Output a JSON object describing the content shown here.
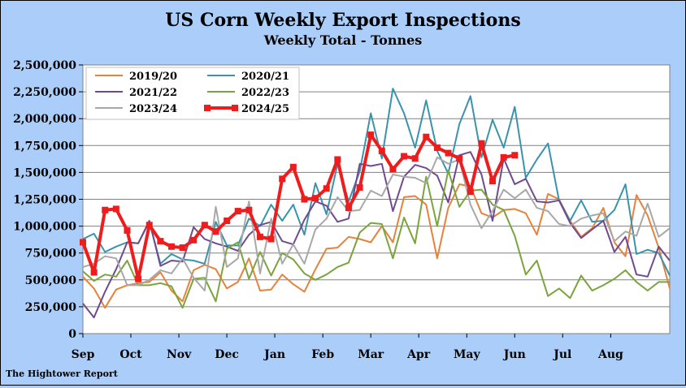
{
  "chart_data": {
    "type": "line",
    "title": "US Corn Weekly Export Inspections",
    "subtitle": "Weekly Total - Tonnes",
    "source": "The Hightower Report",
    "ylim": [
      0,
      2500000
    ],
    "xlim": [
      0,
      53
    ],
    "y_ticks": [
      0,
      250000,
      500000,
      750000,
      1000000,
      1250000,
      1500000,
      1750000,
      2000000,
      2250000,
      2500000
    ],
    "y_tick_labels": [
      "0",
      "250,000",
      "500,000",
      "750,000",
      "1,000,000",
      "1,250,000",
      "1,500,000",
      "1,750,000",
      "2,000,000",
      "2,250,000",
      "2,500,000"
    ],
    "x_tick_positions": [
      0,
      4.33,
      8.67,
      13,
      17.33,
      21.67,
      26,
      30.33,
      34.67,
      39,
      43.33,
      47.67
    ],
    "x_tick_labels": [
      "Sep",
      "Oct",
      "Nov",
      "Dec",
      "Jan",
      "Feb",
      "Mar",
      "Apr",
      "May",
      "Jun",
      "Jul",
      "Aug"
    ],
    "grid": true,
    "legend_position": "top-left",
    "series": [
      {
        "name": "2019/20",
        "color": "#e8823a",
        "width": 2,
        "values": [
          530000,
          420000,
          240000,
          410000,
          450000,
          470000,
          480000,
          570000,
          400000,
          300000,
          590000,
          640000,
          600000,
          420000,
          480000,
          700000,
          400000,
          410000,
          550000,
          460000,
          390000,
          600000,
          790000,
          800000,
          900000,
          880000,
          850000,
          1000000,
          850000,
          1270000,
          1280000,
          1200000,
          700000,
          1170000,
          1390000,
          1370000,
          1120000,
          1080000,
          1150000,
          1160000,
          1120000,
          920000,
          1300000,
          1250000,
          1050000,
          900000,
          980000,
          1170000,
          850000,
          720000,
          1290000,
          1100000,
          800000,
          420000
        ]
      },
      {
        "name": "2020/21",
        "color": "#3a93ad",
        "width": 2,
        "values": [
          880000,
          930000,
          760000,
          810000,
          850000,
          840000,
          1040000,
          650000,
          740000,
          690000,
          680000,
          650000,
          1040000,
          820000,
          820000,
          1070000,
          1000000,
          1200000,
          1050000,
          1200000,
          920000,
          1400000,
          1110000,
          1580000,
          1230000,
          1510000,
          2050000,
          1630000,
          2280000,
          2050000,
          1730000,
          2170000,
          1700000,
          1490000,
          1950000,
          2210000,
          1640000,
          1990000,
          1730000,
          2110000,
          1450000,
          1620000,
          1770000,
          1240000,
          1050000,
          1240000,
          1040000,
          1050000,
          1150000,
          1390000,
          740000,
          780000,
          750000,
          540000
        ]
      },
      {
        "name": "2021/22",
        "color": "#6f4a8f",
        "width": 2,
        "values": [
          280000,
          150000,
          390000,
          600000,
          850000,
          840000,
          1050000,
          630000,
          680000,
          670000,
          990000,
          880000,
          840000,
          810000,
          770000,
          920000,
          1010000,
          1040000,
          860000,
          830000,
          1060000,
          1230000,
          1190000,
          1040000,
          1070000,
          1580000,
          1560000,
          1580000,
          1140000,
          1460000,
          1570000,
          1540000,
          1470000,
          1220000,
          1660000,
          1690000,
          1480000,
          1050000,
          1630000,
          1390000,
          1440000,
          1230000,
          1220000,
          1240000,
          1030000,
          890000,
          970000,
          1050000,
          760000,
          900000,
          550000,
          530000,
          810000,
          680000
        ]
      },
      {
        "name": "2022/23",
        "color": "#7aa43c",
        "width": 2,
        "values": [
          580000,
          490000,
          550000,
          530000,
          680000,
          450000,
          450000,
          470000,
          440000,
          240000,
          510000,
          520000,
          300000,
          790000,
          850000,
          510000,
          760000,
          540000,
          750000,
          690000,
          560000,
          500000,
          550000,
          620000,
          660000,
          940000,
          1030000,
          1020000,
          700000,
          1080000,
          840000,
          1460000,
          1000000,
          1520000,
          1180000,
          1330000,
          1340000,
          1200000,
          1150000,
          910000,
          550000,
          680000,
          350000,
          420000,
          330000,
          540000,
          400000,
          450000,
          510000,
          590000,
          480000,
          400000,
          480000,
          480000
        ]
      },
      {
        "name": "2023/24",
        "color": "#a8a8a8",
        "width": 2,
        "values": [
          620000,
          650000,
          720000,
          700000,
          450000,
          450000,
          500000,
          590000,
          560000,
          700000,
          520000,
          400000,
          1180000,
          620000,
          700000,
          1230000,
          560000,
          1070000,
          650000,
          830000,
          650000,
          970000,
          1070000,
          1270000,
          1140000,
          1150000,
          1330000,
          1280000,
          1480000,
          1460000,
          1450000,
          1400000,
          1640000,
          1580000,
          1620000,
          1200000,
          980000,
          1140000,
          1340000,
          1260000,
          1340000,
          1170000,
          1140000,
          1020000,
          1000000,
          1070000,
          1100000,
          1120000,
          860000,
          950000,
          910000,
          1210000,
          900000,
          980000
        ]
      },
      {
        "name": "2024/25",
        "color": "#ee1c1c",
        "width": 4,
        "marker": "square",
        "values": [
          850000,
          570000,
          1150000,
          1160000,
          960000,
          510000,
          1010000,
          860000,
          810000,
          800000,
          870000,
          1010000,
          950000,
          1050000,
          1140000,
          1150000,
          900000,
          880000,
          1440000,
          1550000,
          1250000,
          1260000,
          1350000,
          1620000,
          1170000,
          1360000,
          1850000,
          1700000,
          1530000,
          1650000,
          1630000,
          1830000,
          1730000,
          1680000,
          1630000,
          1320000,
          1770000,
          1420000,
          1640000,
          1660000
        ]
      }
    ]
  }
}
